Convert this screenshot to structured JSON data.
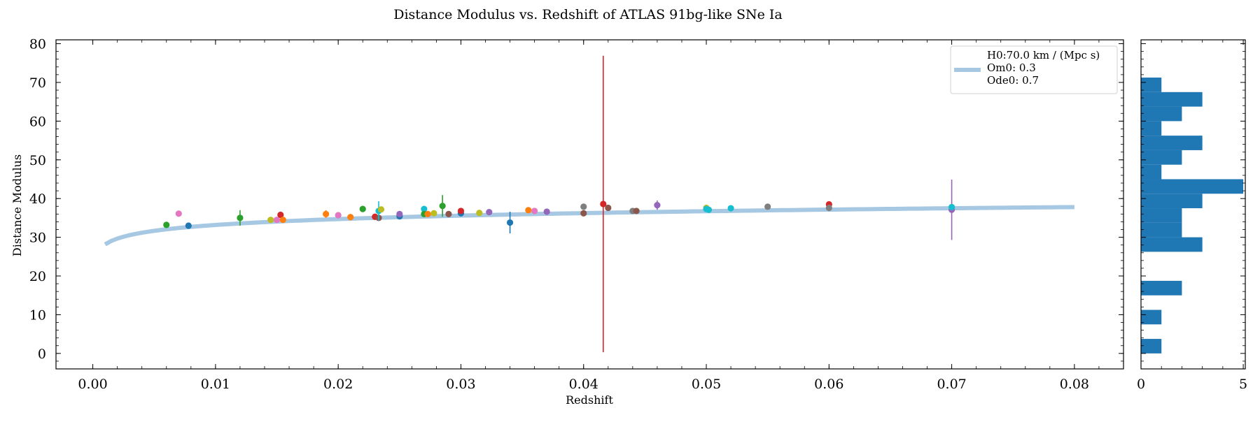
{
  "chart_data": {
    "type": "scatter",
    "title": "Distance Modulus vs. Redshift of ATLAS 91bg-like SNe Ia",
    "xlabel": "Redshift",
    "ylabel": "Distance Modulus",
    "xlim": [
      -0.003,
      0.084
    ],
    "ylim": [
      -4,
      81
    ],
    "xticks": [
      "0.00",
      "0.01",
      "0.02",
      "0.03",
      "0.04",
      "0.05",
      "0.06",
      "0.07",
      "0.08"
    ],
    "yticks": [
      "0",
      "10",
      "20",
      "30",
      "40",
      "50",
      "60",
      "70",
      "80"
    ],
    "legend": {
      "placement": "top-right",
      "line_color": "#a6c8e2",
      "lines": [
        "H0:70.0 km / (Mpc s)",
        "Om0: 0.3",
        "Ode0: 0.7"
      ]
    },
    "model_curve": {
      "color": "#a6c8e2",
      "H0": 70.0,
      "Om0": 0.3,
      "Ode0": 0.7,
      "x_range": [
        0.001,
        0.08
      ]
    },
    "points": [
      {
        "z": 0.006,
        "mu": 33.2,
        "err": 0.5,
        "color": "#2ca02c"
      },
      {
        "z": 0.007,
        "mu": 36.1,
        "err": 0.3,
        "color": "#e377c2"
      },
      {
        "z": 0.0078,
        "mu": 33.0,
        "err": 0.3,
        "color": "#1f77b4"
      },
      {
        "z": 0.012,
        "mu": 35.0,
        "err": 2.0,
        "color": "#2ca02c"
      },
      {
        "z": 0.0145,
        "mu": 34.5,
        "err": 0.3,
        "color": "#bcbd22"
      },
      {
        "z": 0.015,
        "mu": 34.5,
        "err": 0.3,
        "color": "#e377c2"
      },
      {
        "z": 0.0153,
        "mu": 35.8,
        "err": 0.4,
        "color": "#d62728"
      },
      {
        "z": 0.0155,
        "mu": 34.5,
        "err": 0.3,
        "color": "#ff7f0e"
      },
      {
        "z": 0.019,
        "mu": 36.0,
        "err": 1.0,
        "color": "#ff7f0e"
      },
      {
        "z": 0.02,
        "mu": 35.7,
        "err": 0.3,
        "color": "#e377c2"
      },
      {
        "z": 0.021,
        "mu": 35.2,
        "err": 0.3,
        "color": "#ff7f0e"
      },
      {
        "z": 0.022,
        "mu": 37.3,
        "err": 0.3,
        "color": "#2ca02c"
      },
      {
        "z": 0.023,
        "mu": 35.3,
        "err": 0.4,
        "color": "#d62728"
      },
      {
        "z": 0.0233,
        "mu": 35.0,
        "err": 0.7,
        "color": "#8c564b"
      },
      {
        "z": 0.0233,
        "mu": 36.8,
        "err": 2.5,
        "color": "#17becf"
      },
      {
        "z": 0.0235,
        "mu": 37.2,
        "err": 0.3,
        "color": "#bcbd22"
      },
      {
        "z": 0.025,
        "mu": 35.4,
        "err": 0.3,
        "color": "#1f77b4"
      },
      {
        "z": 0.025,
        "mu": 36.0,
        "err": 0.3,
        "color": "#9467bd"
      },
      {
        "z": 0.027,
        "mu": 37.3,
        "err": 0.3,
        "color": "#17becf"
      },
      {
        "z": 0.027,
        "mu": 36.0,
        "err": 0.3,
        "color": "#2ca02c"
      },
      {
        "z": 0.0273,
        "mu": 36.0,
        "err": 0.3,
        "color": "#ff7f0e"
      },
      {
        "z": 0.0278,
        "mu": 36.2,
        "err": 0.3,
        "color": "#bcbd22"
      },
      {
        "z": 0.0285,
        "mu": 38.1,
        "err": 2.8,
        "color": "#2ca02c"
      },
      {
        "z": 0.029,
        "mu": 36.0,
        "err": 0.3,
        "color": "#8c564b"
      },
      {
        "z": 0.03,
        "mu": 36.2,
        "err": 0.3,
        "color": "#1f77b4"
      },
      {
        "z": 0.03,
        "mu": 36.8,
        "err": 0.3,
        "color": "#d62728"
      },
      {
        "z": 0.0315,
        "mu": 36.3,
        "err": 0.3,
        "color": "#bcbd22"
      },
      {
        "z": 0.0323,
        "mu": 36.5,
        "err": 0.3,
        "color": "#9467bd"
      },
      {
        "z": 0.034,
        "mu": 33.8,
        "err": 2.8,
        "color": "#1f77b4"
      },
      {
        "z": 0.0355,
        "mu": 37.0,
        "err": 0.3,
        "color": "#ff7f0e"
      },
      {
        "z": 0.036,
        "mu": 36.8,
        "err": 0.3,
        "color": "#e377c2"
      },
      {
        "z": 0.037,
        "mu": 36.6,
        "err": 0.3,
        "color": "#9467bd"
      },
      {
        "z": 0.04,
        "mu": 37.9,
        "err": 0.3,
        "color": "#7f7f7f"
      },
      {
        "z": 0.04,
        "mu": 36.2,
        "err": 0.3,
        "color": "#8c564b"
      },
      {
        "z": 0.0416,
        "mu": 38.6,
        "err": 38.3,
        "color": "#d62728"
      },
      {
        "z": 0.042,
        "mu": 37.6,
        "err": 0.3,
        "color": "#8c564b"
      },
      {
        "z": 0.044,
        "mu": 36.8,
        "err": 0.3,
        "color": "#7f7f7f"
      },
      {
        "z": 0.0443,
        "mu": 36.8,
        "err": 0.3,
        "color": "#8c564b"
      },
      {
        "z": 0.046,
        "mu": 38.3,
        "err": 1.2,
        "color": "#9467bd"
      },
      {
        "z": 0.05,
        "mu": 37.6,
        "err": 0.6,
        "color": "#bcbd22"
      },
      {
        "z": 0.05,
        "mu": 37.3,
        "err": 0.3,
        "color": "#17becf"
      },
      {
        "z": 0.0502,
        "mu": 37.1,
        "err": 0.3,
        "color": "#17becf"
      },
      {
        "z": 0.052,
        "mu": 37.5,
        "err": 0.3,
        "color": "#17becf"
      },
      {
        "z": 0.055,
        "mu": 37.9,
        "err": 0.3,
        "color": "#7f7f7f"
      },
      {
        "z": 0.06,
        "mu": 38.5,
        "err": 0.8,
        "color": "#d62728"
      },
      {
        "z": 0.06,
        "mu": 37.6,
        "err": 0.3,
        "color": "#7f7f7f"
      },
      {
        "z": 0.07,
        "mu": 37.1,
        "err": 7.8,
        "color": "#9467bd"
      },
      {
        "z": 0.07,
        "mu": 37.8,
        "err": 0.3,
        "color": "#17becf"
      }
    ],
    "histogram": {
      "orientation": "horizontal",
      "color": "#1f77b4",
      "xlim": [
        0,
        5.1
      ],
      "xticks": [
        "0",
        "5"
      ],
      "bin_edges": [
        0,
        3.75,
        7.5,
        11.25,
        15,
        18.75,
        22.5,
        26.25,
        30,
        33.75,
        37.5,
        41.25,
        45,
        48.75,
        52.5,
        56.25,
        60,
        63.75,
        67.5,
        71.25,
        75
      ],
      "counts": [
        1,
        0,
        1,
        0,
        2,
        0,
        0,
        3,
        2,
        2,
        3,
        5,
        1,
        2,
        3,
        1,
        2,
        3,
        1,
        0
      ]
    }
  }
}
